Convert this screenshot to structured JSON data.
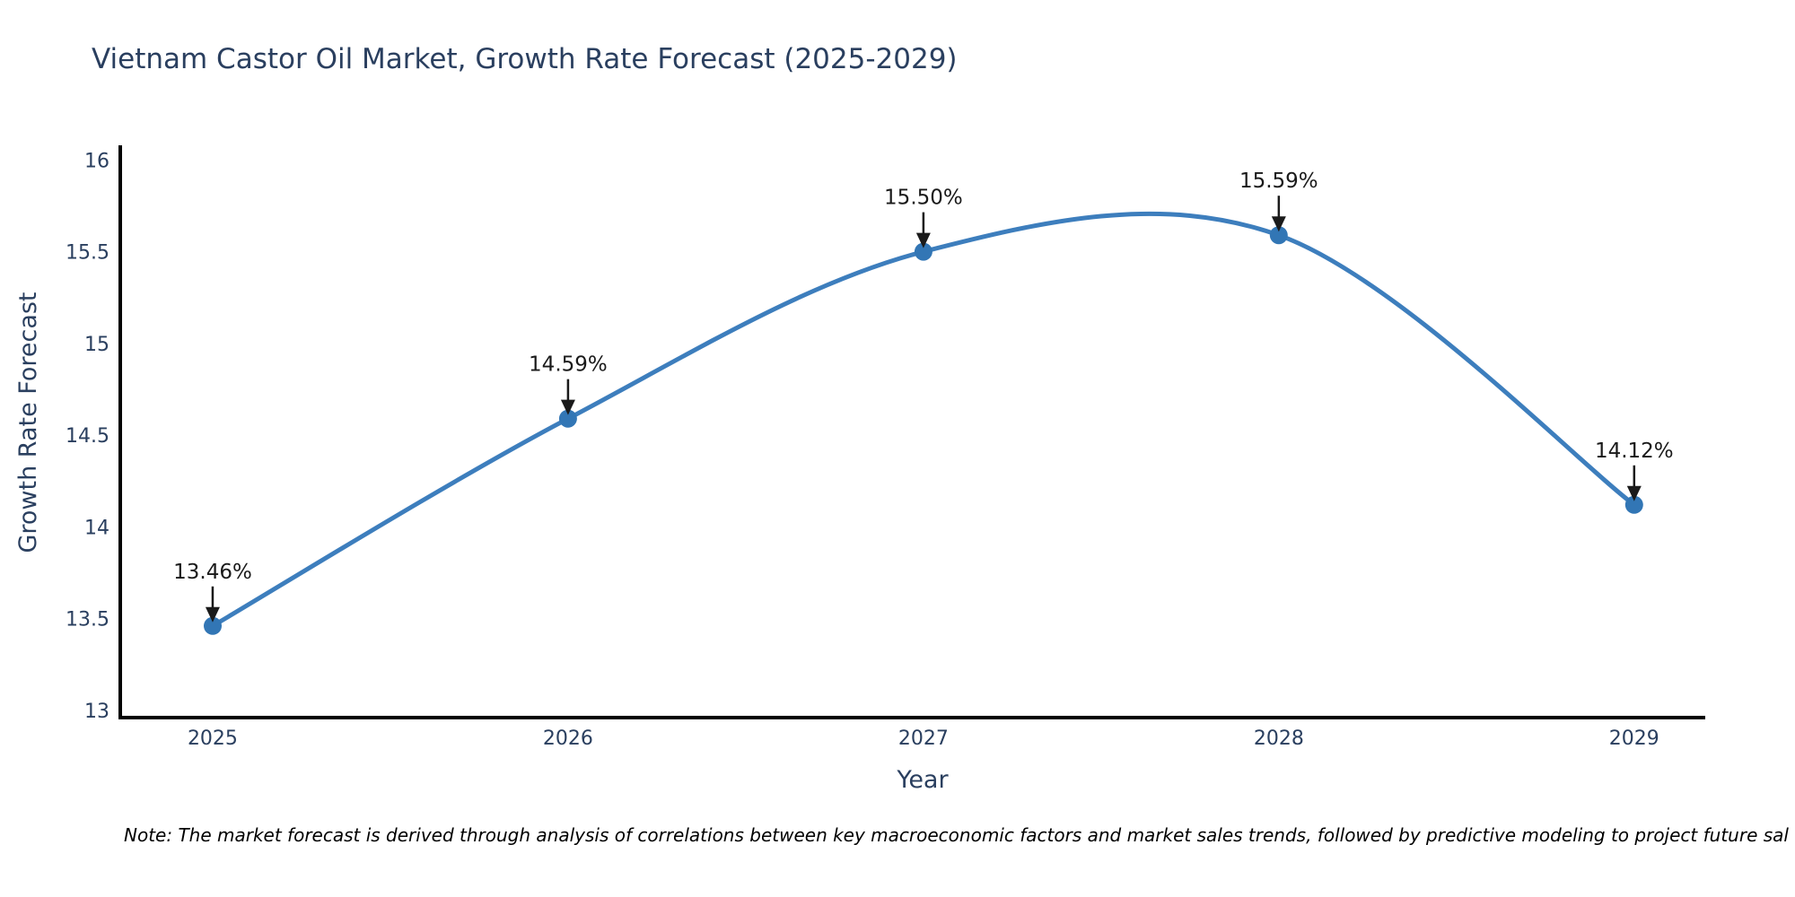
{
  "chart_data": {
    "type": "line",
    "title": "Vietnam Castor Oil Market, Growth Rate Forecast (2025-2029)",
    "xlabel": "Year",
    "ylabel": "Growth Rate Forecast",
    "x": [
      2025,
      2026,
      2027,
      2028,
      2029
    ],
    "values": [
      13.46,
      14.59,
      15.5,
      15.59,
      14.12
    ],
    "series": [
      {
        "name": "Growth Rate Forecast",
        "values": [
          13.46,
          14.59,
          15.5,
          15.59,
          14.12
        ]
      }
    ],
    "point_labels": [
      "13.46%",
      "14.59%",
      "15.50%",
      "15.59%",
      "14.12%"
    ],
    "x_tick_labels": [
      "2025",
      "2026",
      "2027",
      "2028",
      "2029"
    ],
    "y_ticks": [
      13,
      13.5,
      14,
      14.5,
      15,
      15.5,
      16
    ],
    "y_tick_labels": [
      "13",
      "13.5",
      "14",
      "14.5",
      "15",
      "15.5",
      "16"
    ],
    "xlim": [
      2024.74,
      2029.2
    ],
    "ylim": [
      12.96,
      16.08
    ],
    "line_shape": "spline",
    "grid": false,
    "legend_position": "none",
    "note": "Note: The market forecast is derived through analysis of correlations between key macroeconomic factors and market sales trends, followed by predictive modeling to project future sal",
    "colors": {
      "line": "#3d7ebd",
      "marker": "#3276b5",
      "axis": "#000000",
      "tick_text": "#2a3f5f",
      "title_text": "#2a3f5f",
      "annotation_text": "#1a1a1a",
      "note_text": "#000000",
      "background": "#ffffff"
    }
  }
}
